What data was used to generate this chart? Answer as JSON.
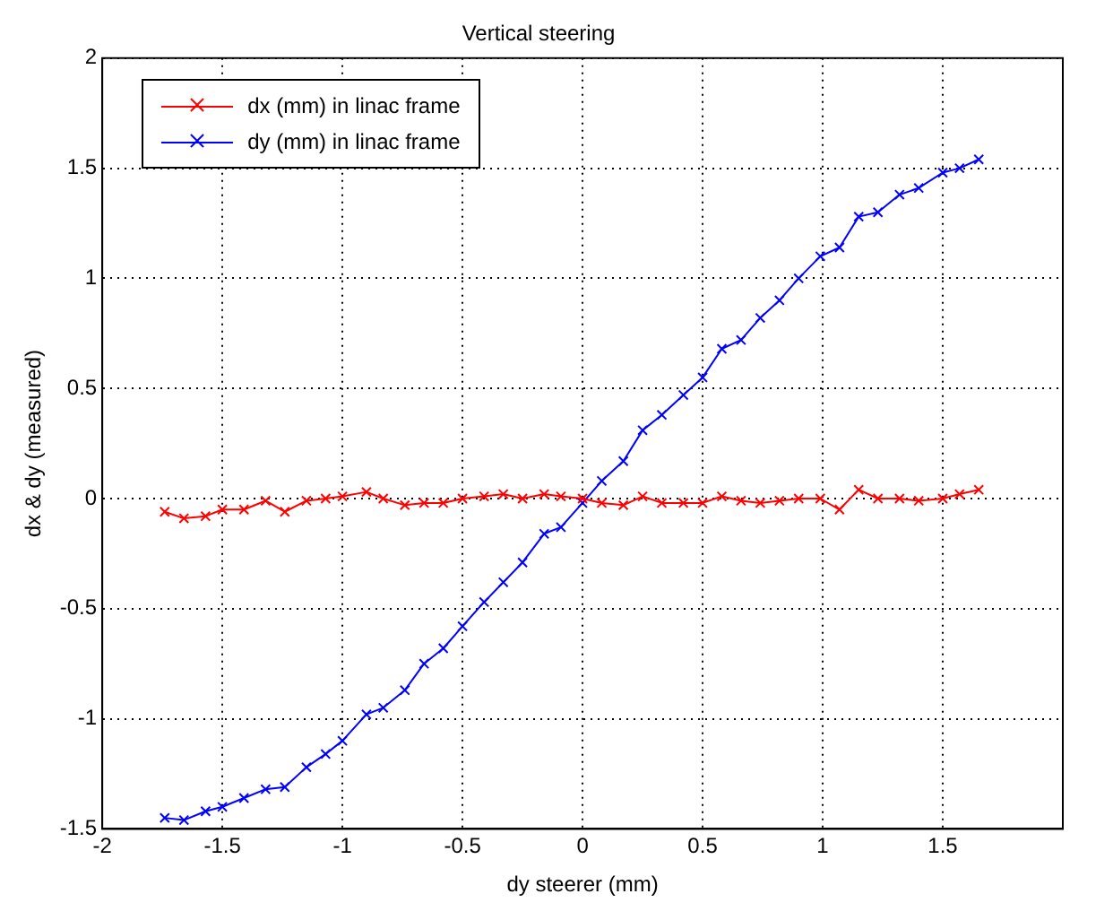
{
  "chart_data": {
    "type": "line",
    "title": "Vertical steering",
    "xlabel": "dy steerer (mm)",
    "ylabel": "dx & dy (measured)",
    "x": [
      -1.74,
      -1.66,
      -1.57,
      -1.5,
      -1.41,
      -1.32,
      -1.24,
      -1.15,
      -1.07,
      -1.0,
      -0.9,
      -0.83,
      -0.74,
      -0.66,
      -0.58,
      -0.5,
      -0.41,
      -0.33,
      -0.25,
      -0.16,
      -0.09,
      0,
      0.08,
      0.17,
      0.25,
      0.33,
      0.42,
      0.5,
      0.58,
      0.66,
      0.74,
      0.82,
      0.9,
      0.99,
      1.07,
      1.15,
      1.23,
      1.32,
      1.4,
      1.5,
      1.57,
      1.65
    ],
    "series": [
      {
        "name": "dx (mm) in linac frame",
        "color": "#ff0000",
        "values": [
          -0.06,
          -0.09,
          -0.08,
          -0.05,
          -0.05,
          -0.01,
          -0.06,
          -0.01,
          0,
          0.01,
          0.03,
          0,
          -0.03,
          -0.02,
          -0.02,
          0,
          0.01,
          0.02,
          0,
          0.02,
          0.01,
          0,
          -0.02,
          -0.03,
          0.01,
          -0.02,
          -0.02,
          -0.02,
          0.01,
          -0.01,
          -0.02,
          -0.01,
          0,
          0,
          -0.05,
          0.04,
          0,
          0,
          -0.01,
          0,
          0.02,
          0.04
        ]
      },
      {
        "name": "dy (mm) in linac frame",
        "color": "#0000ff",
        "values": [
          -1.45,
          -1.46,
          -1.42,
          -1.4,
          -1.36,
          -1.32,
          -1.31,
          -1.22,
          -1.16,
          -1.1,
          -0.98,
          -0.95,
          -0.87,
          -0.75,
          -0.68,
          -0.58,
          -0.47,
          -0.38,
          -0.29,
          -0.16,
          -0.13,
          -0.02,
          0.08,
          0.17,
          0.31,
          0.38,
          0.47,
          0.55,
          0.68,
          0.72,
          0.82,
          0.9,
          1.0,
          1.1,
          1.14,
          1.28,
          1.3,
          1.38,
          1.41,
          1.48,
          1.5,
          1.54
        ]
      }
    ],
    "xlim": [
      -2,
      2
    ],
    "xticks": [
      -2,
      -1.5,
      -1,
      -0.5,
      0,
      0.5,
      1,
      1.5
    ],
    "ylim": [
      -1.5,
      2
    ],
    "yticks": [
      -1.5,
      -1,
      -0.5,
      0,
      0.5,
      1,
      1.5,
      2
    ],
    "grid": true,
    "legend": "top left",
    "marker": "cross",
    "line_style": "solid"
  }
}
